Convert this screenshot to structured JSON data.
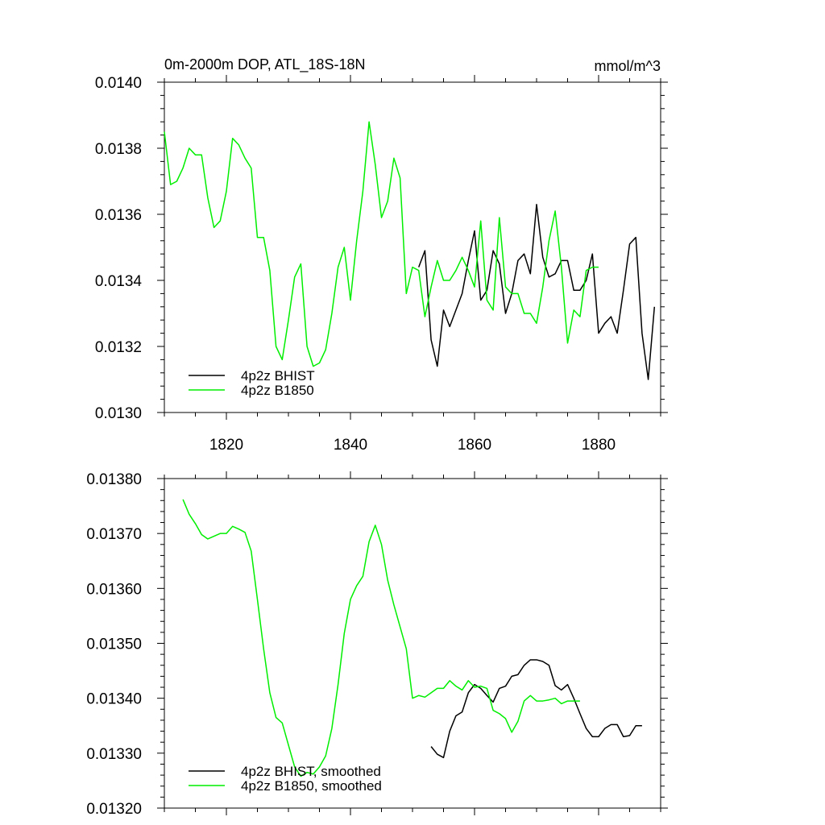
{
  "chart_data": [
    {
      "type": "line",
      "title": "0m-2000m DOP, ATL_18S-18N",
      "units": "mmol/m^3",
      "xlim": [
        1810,
        1890
      ],
      "ylim": [
        0.013,
        0.014
      ],
      "xticks": [
        1820,
        1840,
        1860,
        1880
      ],
      "yticks": [
        0.013,
        0.0132,
        0.0134,
        0.0136,
        0.0138,
        0.014
      ],
      "ytick_decimals": 4,
      "show_xtick_labels": true,
      "legend_position": "bottom-left",
      "series": [
        {
          "name": "4p2z BHIST",
          "color": "#000000",
          "x": [
            1851,
            1852,
            1853,
            1854,
            1855,
            1856,
            1857,
            1858,
            1859,
            1860,
            1861,
            1862,
            1863,
            1864,
            1865,
            1866,
            1867,
            1868,
            1869,
            1870,
            1871,
            1872,
            1873,
            1874,
            1875,
            1876,
            1877,
            1878,
            1879,
            1880,
            1881,
            1882,
            1883,
            1884,
            1885,
            1886,
            1887,
            1888,
            1889
          ],
          "y": [
            0.01344,
            0.01349,
            0.01322,
            0.01314,
            0.01331,
            0.01326,
            0.01331,
            0.01336,
            0.01346,
            0.01355,
            0.01334,
            0.01337,
            0.01349,
            0.01345,
            0.0133,
            0.01336,
            0.01346,
            0.01348,
            0.01342,
            0.01363,
            0.01347,
            0.01341,
            0.01342,
            0.01346,
            0.01346,
            0.01337,
            0.01337,
            0.0134,
            0.01348,
            0.01324,
            0.01327,
            0.01329,
            0.01324,
            0.01337,
            0.01351,
            0.01353,
            0.01324,
            0.0131,
            0.01332
          ]
        },
        {
          "name": "4p2z B1850",
          "color": "#00ee00",
          "x": [
            1810,
            1811,
            1812,
            1813,
            1814,
            1815,
            1816,
            1817,
            1818,
            1819,
            1820,
            1821,
            1822,
            1823,
            1824,
            1825,
            1826,
            1827,
            1828,
            1829,
            1830,
            1831,
            1832,
            1833,
            1834,
            1835,
            1836,
            1837,
            1838,
            1839,
            1840,
            1841,
            1842,
            1843,
            1844,
            1845,
            1846,
            1847,
            1848,
            1849,
            1850,
            1851,
            1852,
            1853,
            1854,
            1855,
            1856,
            1857,
            1858,
            1859,
            1860,
            1861,
            1862,
            1863,
            1864,
            1865,
            1866,
            1867,
            1868,
            1869,
            1870,
            1871,
            1872,
            1873,
            1874,
            1875,
            1876,
            1877,
            1878,
            1879,
            1880
          ],
          "y": [
            0.01385,
            0.01369,
            0.0137,
            0.01374,
            0.0138,
            0.01378,
            0.01378,
            0.01365,
            0.01356,
            0.01358,
            0.01367,
            0.01383,
            0.01381,
            0.01377,
            0.01374,
            0.01353,
            0.01353,
            0.01343,
            0.0132,
            0.01316,
            0.01328,
            0.01341,
            0.01345,
            0.0132,
            0.01314,
            0.01315,
            0.01319,
            0.0133,
            0.01344,
            0.0135,
            0.01334,
            0.01352,
            0.01367,
            0.01388,
            0.01375,
            0.01359,
            0.01364,
            0.01377,
            0.01371,
            0.01336,
            0.01344,
            0.01343,
            0.01329,
            0.01338,
            0.01346,
            0.0134,
            0.0134,
            0.01343,
            0.01347,
            0.01343,
            0.01338,
            0.01358,
            0.01334,
            0.01331,
            0.01359,
            0.01338,
            0.01336,
            0.01336,
            0.0133,
            0.0133,
            0.01327,
            0.01338,
            0.01352,
            0.01361,
            0.01344,
            0.01321,
            0.01331,
            0.01329,
            0.01343,
            0.01344,
            0.01344
          ]
        }
      ]
    },
    {
      "type": "line",
      "title": "",
      "units": "",
      "xlim": [
        1810,
        1890
      ],
      "ylim": [
        0.0132,
        0.0138
      ],
      "xticks": [
        1820,
        1840,
        1860,
        1880
      ],
      "yticks": [
        0.0132,
        0.0133,
        0.0134,
        0.0135,
        0.0136,
        0.0137,
        0.0138
      ],
      "ytick_decimals": 5,
      "show_xtick_labels": false,
      "legend_position": "bottom-left",
      "series": [
        {
          "name": "4p2z BHIST, smoothed",
          "color": "#000000",
          "x": [
            1853,
            1854,
            1855,
            1856,
            1857,
            1858,
            1859,
            1860,
            1861,
            1862,
            1863,
            1864,
            1865,
            1866,
            1867,
            1868,
            1869,
            1870,
            1871,
            1872,
            1873,
            1874,
            1875,
            1876,
            1877,
            1878,
            1879,
            1880,
            1881,
            1882,
            1883,
            1884,
            1885,
            1886,
            1887
          ],
          "y": [
            0.013312,
            0.013298,
            0.013292,
            0.01334,
            0.013368,
            0.013375,
            0.01341,
            0.013425,
            0.013418,
            0.013405,
            0.013393,
            0.013418,
            0.013422,
            0.01344,
            0.013443,
            0.01346,
            0.01347,
            0.01347,
            0.013467,
            0.01346,
            0.013423,
            0.013415,
            0.013425,
            0.0134,
            0.013372,
            0.013345,
            0.01333,
            0.01333,
            0.013345,
            0.013352,
            0.013352,
            0.01333,
            0.013332,
            0.01335,
            0.01335
          ]
        },
        {
          "name": "4p2z B1850, smoothed",
          "color": "#00ee00",
          "x": [
            1813,
            1814,
            1815,
            1816,
            1817,
            1818,
            1819,
            1820,
            1821,
            1822,
            1823,
            1824,
            1825,
            1826,
            1827,
            1828,
            1829,
            1830,
            1831,
            1832,
            1833,
            1834,
            1835,
            1836,
            1837,
            1838,
            1839,
            1840,
            1841,
            1842,
            1843,
            1844,
            1845,
            1846,
            1847,
            1848,
            1849,
            1850,
            1851,
            1852,
            1853,
            1854,
            1855,
            1856,
            1857,
            1858,
            1859,
            1860,
            1861,
            1862,
            1863,
            1864,
            1865,
            1866,
            1867,
            1868,
            1869,
            1870,
            1871,
            1872,
            1873,
            1874,
            1875,
            1876,
            1877
          ],
          "y": [
            0.013762,
            0.013735,
            0.013718,
            0.013698,
            0.01369,
            0.013695,
            0.0137,
            0.0137,
            0.013713,
            0.013708,
            0.013702,
            0.013668,
            0.01358,
            0.01349,
            0.01341,
            0.013365,
            0.013355,
            0.013315,
            0.013275,
            0.013258,
            0.013265,
            0.013262,
            0.013275,
            0.013295,
            0.013345,
            0.013425,
            0.013518,
            0.01358,
            0.013605,
            0.013622,
            0.013685,
            0.013715,
            0.01368,
            0.013615,
            0.01357,
            0.01353,
            0.01349,
            0.0134,
            0.013405,
            0.013402,
            0.01341,
            0.013418,
            0.013418,
            0.013432,
            0.013422,
            0.013415,
            0.013432,
            0.01342,
            0.013422,
            0.013418,
            0.013378,
            0.013372,
            0.013363,
            0.013338,
            0.013358,
            0.013395,
            0.013405,
            0.013395,
            0.013395,
            0.013397,
            0.0134,
            0.01339,
            0.013395,
            0.013395,
            0.013395
          ]
        }
      ]
    }
  ]
}
